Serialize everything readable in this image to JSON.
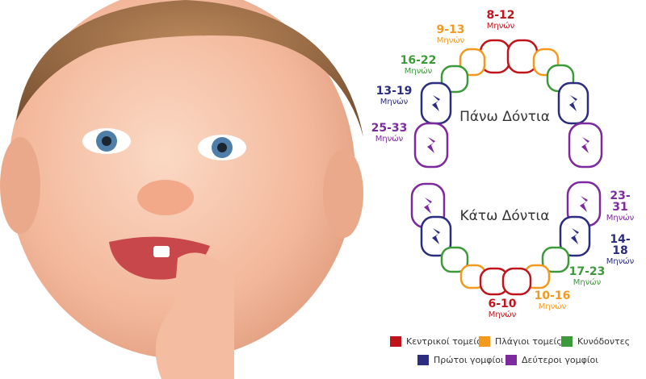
{
  "colors": {
    "central_incisors": "#c0141c",
    "lateral_incisors": "#f39a1e",
    "canines": "#3c9a3a",
    "first_molars": "#2c2c80",
    "second_molars": "#7d2a9e"
  },
  "upper_title": "Πάνω Δόντια",
  "lower_title": "Κάτω Δόντια",
  "labels": [
    {
      "range": "8-12",
      "unit": "Μηνών"
    },
    {
      "range": "9-13",
      "unit": "Μηνών"
    },
    {
      "range": "16-22",
      "unit": "Μηνών"
    },
    {
      "range": "13-19",
      "unit": "Μηνών"
    },
    {
      "range": "25-33",
      "unit": "Μηνών"
    },
    {
      "range": "23-31",
      "unit": "Μηνών"
    },
    {
      "range": "14-18",
      "unit": "Μηνών"
    },
    {
      "range": "17-23",
      "unit": "Μηνών"
    },
    {
      "range": "10-16",
      "unit": "Μηνών"
    },
    {
      "range": "6-10",
      "unit": "Μηνών"
    }
  ],
  "legend": [
    {
      "label": "Κεντρικοί τομείς"
    },
    {
      "label": "Πλάγιοι τομείς"
    },
    {
      "label": "Κυνόδοντες"
    },
    {
      "label": "Πρώτοι γομφίοι"
    },
    {
      "label": "Δεύτεροι γομφίοι"
    }
  ]
}
